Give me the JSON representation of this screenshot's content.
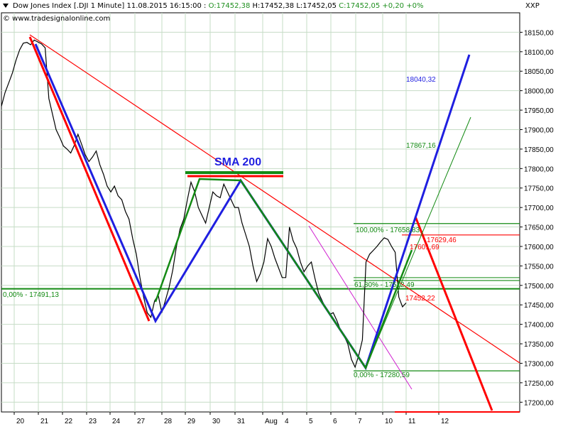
{
  "header": {
    "title": "Dow Jones Index [.DJI  1 Minute] 11.08.2015 16:15:00",
    "open": "O:17452,38",
    "high_low": "H:17452,38 L:17452,05",
    "close": "C:17452,05 +0,20 +0%",
    "copyright": "© www.tradesignalonline.com",
    "ticker": "XXP"
  },
  "colors": {
    "price": "#000000",
    "red_line": "#ff0000",
    "blue_line": "#1f1fe0",
    "green_line": "#138a13",
    "magenta": "#d020d0",
    "grid": "#c6dcc6"
  },
  "chart_data": {
    "type": "line",
    "y_axis": {
      "ylim": [
        17175,
        18200
      ],
      "ticks": [
        "18150,00",
        "18100,00",
        "18050,00",
        "18000,00",
        "17950,00",
        "17900,00",
        "17850,00",
        "17800,00",
        "17750,00",
        "17700,00",
        "17650,00",
        "17600,00",
        "17550,00",
        "17500,00",
        "17450,00",
        "17400,00",
        "17350,00",
        "17300,00",
        "17250,00",
        "17200,00"
      ]
    },
    "x_axis": {
      "ticks": [
        "20",
        "21",
        "22",
        "23",
        "24",
        "27",
        "28",
        "29",
        "30",
        "31",
        "Aug",
        "4",
        "5",
        "6",
        "7",
        "10",
        "11",
        "12"
      ]
    },
    "series": [
      {
        "values": [
          17960,
          17995,
          18020,
          18045,
          18078,
          18105,
          18122,
          18124,
          18118,
          18130,
          18125,
          18120,
          18110,
          17980,
          17940,
          17900,
          17880,
          17858,
          17850,
          17840,
          17860,
          17888,
          17862,
          17835,
          17818,
          17830,
          17845,
          17810,
          17785,
          17755,
          17740,
          17755,
          17730,
          17720,
          17690,
          17670,
          17620,
          17580,
          17520,
          17470,
          17430,
          17418,
          17460,
          17475,
          17430,
          17462,
          17495,
          17540,
          17600,
          17645,
          17670,
          17720,
          17765,
          17740,
          17700,
          17680,
          17660,
          17700,
          17740,
          17730,
          17725,
          17760,
          17740,
          17720,
          17700,
          17700,
          17660,
          17630,
          17600,
          17550,
          17510,
          17530,
          17560,
          17620,
          17600,
          17570,
          17545,
          17520,
          17520,
          17650,
          17615,
          17595,
          17560,
          17535,
          17550,
          17560,
          17518,
          17480,
          17460,
          17440,
          17425,
          17430,
          17410,
          17385,
          17370,
          17350,
          17310,
          17290,
          17320,
          17360,
          17560,
          17580,
          17590,
          17600,
          17612,
          17622,
          17618,
          17600,
          17585,
          17470,
          17445,
          17455
        ]
      }
    ],
    "annotations": [
      {
        "text": "SMA 200",
        "color": "#1f1fe0"
      },
      {
        "text": "0,00% - 17491,13",
        "color": "#138a13"
      },
      {
        "text": "18040,32",
        "color": "#1f1fe0"
      },
      {
        "text": "17867,16",
        "color": "#138a13"
      },
      {
        "text": "100,00% - 17658,83",
        "color": "#138a13"
      },
      {
        "text": "17629,46",
        "color": "#ff0000"
      },
      {
        "text": "17601,69",
        "color": "#ff0000"
      },
      {
        "text": "61,80% - 17512,49",
        "color": "#138a13"
      },
      {
        "text": "17452,22",
        "color": "#ff0000"
      },
      {
        "text": "0,00% - 17280,59",
        "color": "#138a13"
      }
    ],
    "levels": [
      {
        "value": 17491.13,
        "color": "#138a13"
      },
      {
        "value": 17658.83,
        "color": "#138a13"
      },
      {
        "value": 17629.46,
        "color": "#ff0000"
      },
      {
        "value": 17512.49,
        "color": "#138a13"
      },
      {
        "value": 17280.59,
        "color": "#138a13"
      },
      {
        "value": 17175.0,
        "color": "#ff0000"
      }
    ],
    "grid": true
  }
}
